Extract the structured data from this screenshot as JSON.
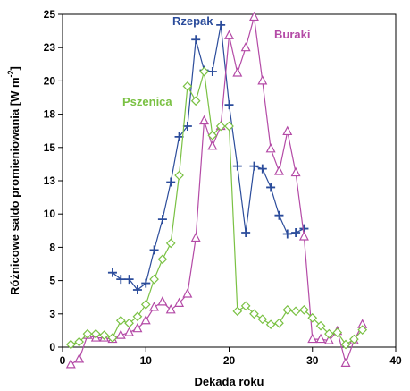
{
  "chart_data": {
    "type": "line",
    "xlabel": "Dekada roku",
    "ylabel_main": "Różnicowe saldo promieniowania [W m",
    "ylabel_sup": "-2",
    "ylabel_close": "]",
    "xlim": [
      0,
      40
    ],
    "ylim": [
      0,
      25
    ],
    "x_ticks": [
      0,
      10,
      20,
      30,
      40
    ],
    "y_ticks": [
      0,
      2.5,
      5,
      7.5,
      10,
      12.5,
      15,
      17.5,
      20,
      22.5,
      25
    ],
    "y_tick_labels": [
      "0",
      "3",
      "5",
      "8",
      "10",
      "13",
      "15",
      "18",
      "20",
      "23",
      "25"
    ],
    "grid": false,
    "series": [
      {
        "name": "Rzepak",
        "color": "#2b4c9b",
        "marker": "plus",
        "x": [
          6,
          7,
          8,
          9,
          10,
          11,
          12,
          13,
          14,
          15,
          16,
          17,
          18,
          19,
          20,
          21,
          22,
          23,
          24,
          25,
          26,
          27,
          28,
          29
        ],
        "y": [
          5.6,
          5.1,
          5.1,
          4.3,
          4.8,
          7.3,
          9.6,
          12.4,
          15.8,
          16.6,
          23.1,
          20.8,
          20.7,
          24.2,
          18.2,
          13.6,
          8.6,
          13.6,
          13.4,
          12.0,
          9.9,
          8.5,
          8.6,
          8.9
        ]
      },
      {
        "name": "Buraki",
        "color": "#b44aa6",
        "marker": "triangle",
        "x": [
          1,
          2,
          3,
          4,
          5,
          6,
          7,
          8,
          9,
          10,
          11,
          12,
          13,
          14,
          15,
          16,
          17,
          18,
          19,
          20,
          21,
          22,
          23,
          24,
          25,
          26,
          27,
          28,
          29,
          30,
          31,
          32,
          33,
          34,
          35,
          36
        ],
        "y": [
          -1.3,
          -0.9,
          0.9,
          0.7,
          0.7,
          0.6,
          0.9,
          1.1,
          1.4,
          2.0,
          3.0,
          3.4,
          2.8,
          3.3,
          4.0,
          8.2,
          17.0,
          15.1,
          16.6,
          23.4,
          20.6,
          22.5,
          24.8,
          20.0,
          14.9,
          13.2,
          16.2,
          13.1,
          8.3,
          0.6,
          0.6,
          0.5,
          1.2,
          -1.2,
          0.5,
          1.7
        ]
      },
      {
        "name": "Pszenica",
        "color": "#7ac143",
        "marker": "diamond",
        "x": [
          1,
          2,
          3,
          4,
          5,
          6,
          7,
          8,
          9,
          10,
          11,
          12,
          13,
          14,
          15,
          16,
          17,
          18,
          19,
          20,
          21,
          22,
          23,
          24,
          25,
          26,
          27,
          28,
          29,
          30,
          31,
          32,
          33,
          34,
          35,
          36
        ],
        "y": [
          0.2,
          0.4,
          1.0,
          1.0,
          0.9,
          0.7,
          2.0,
          1.8,
          2.3,
          3.2,
          5.1,
          6.6,
          7.8,
          12.9,
          19.6,
          18.5,
          20.7,
          15.9,
          16.6,
          16.6,
          2.7,
          3.1,
          2.5,
          2.1,
          1.7,
          1.8,
          2.8,
          2.7,
          2.8,
          2.2,
          1.6,
          1.0,
          1.1,
          0.2,
          0.6,
          1.3
        ]
      }
    ]
  }
}
